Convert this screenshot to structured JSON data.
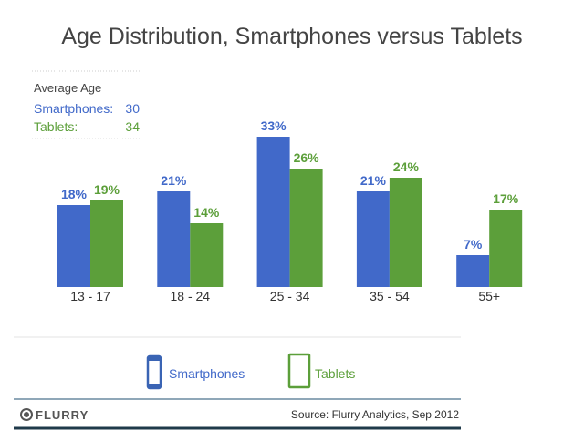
{
  "chart_data": {
    "type": "bar",
    "title": "Age Distribution, Smartphones versus Tablets",
    "categories": [
      "13 - 17",
      "18 - 24",
      "25 - 34",
      "35 - 54",
      "55+"
    ],
    "series": [
      {
        "name": "Smartphones",
        "values": [
          18,
          21,
          33,
          21,
          7
        ],
        "labels": [
          "18%",
          "21%",
          "33%",
          "21%",
          "7%"
        ],
        "color": "#4169c9"
      },
      {
        "name": "Tablets",
        "values": [
          19,
          14,
          26,
          24,
          17
        ],
        "labels": [
          "19%",
          "14%",
          "26%",
          "24%",
          "17%"
        ],
        "color": "#5c9f3a"
      }
    ],
    "ylim": [
      0,
      35
    ],
    "grid": false,
    "legend": "bottom"
  },
  "average_age": {
    "heading": "Average Age",
    "smartphones_label": "Smartphones:",
    "smartphones_value": "30",
    "tablets_label": "Tablets:",
    "tablets_value": "34"
  },
  "legend": {
    "smartphones": "Smartphones",
    "tablets": "Tablets",
    "smartphones_icon": "smartphone-icon",
    "tablets_icon": "tablet-icon"
  },
  "footer": {
    "logo": "FLURRY",
    "source": "Source: Flurry Analytics, Sep 2012"
  }
}
